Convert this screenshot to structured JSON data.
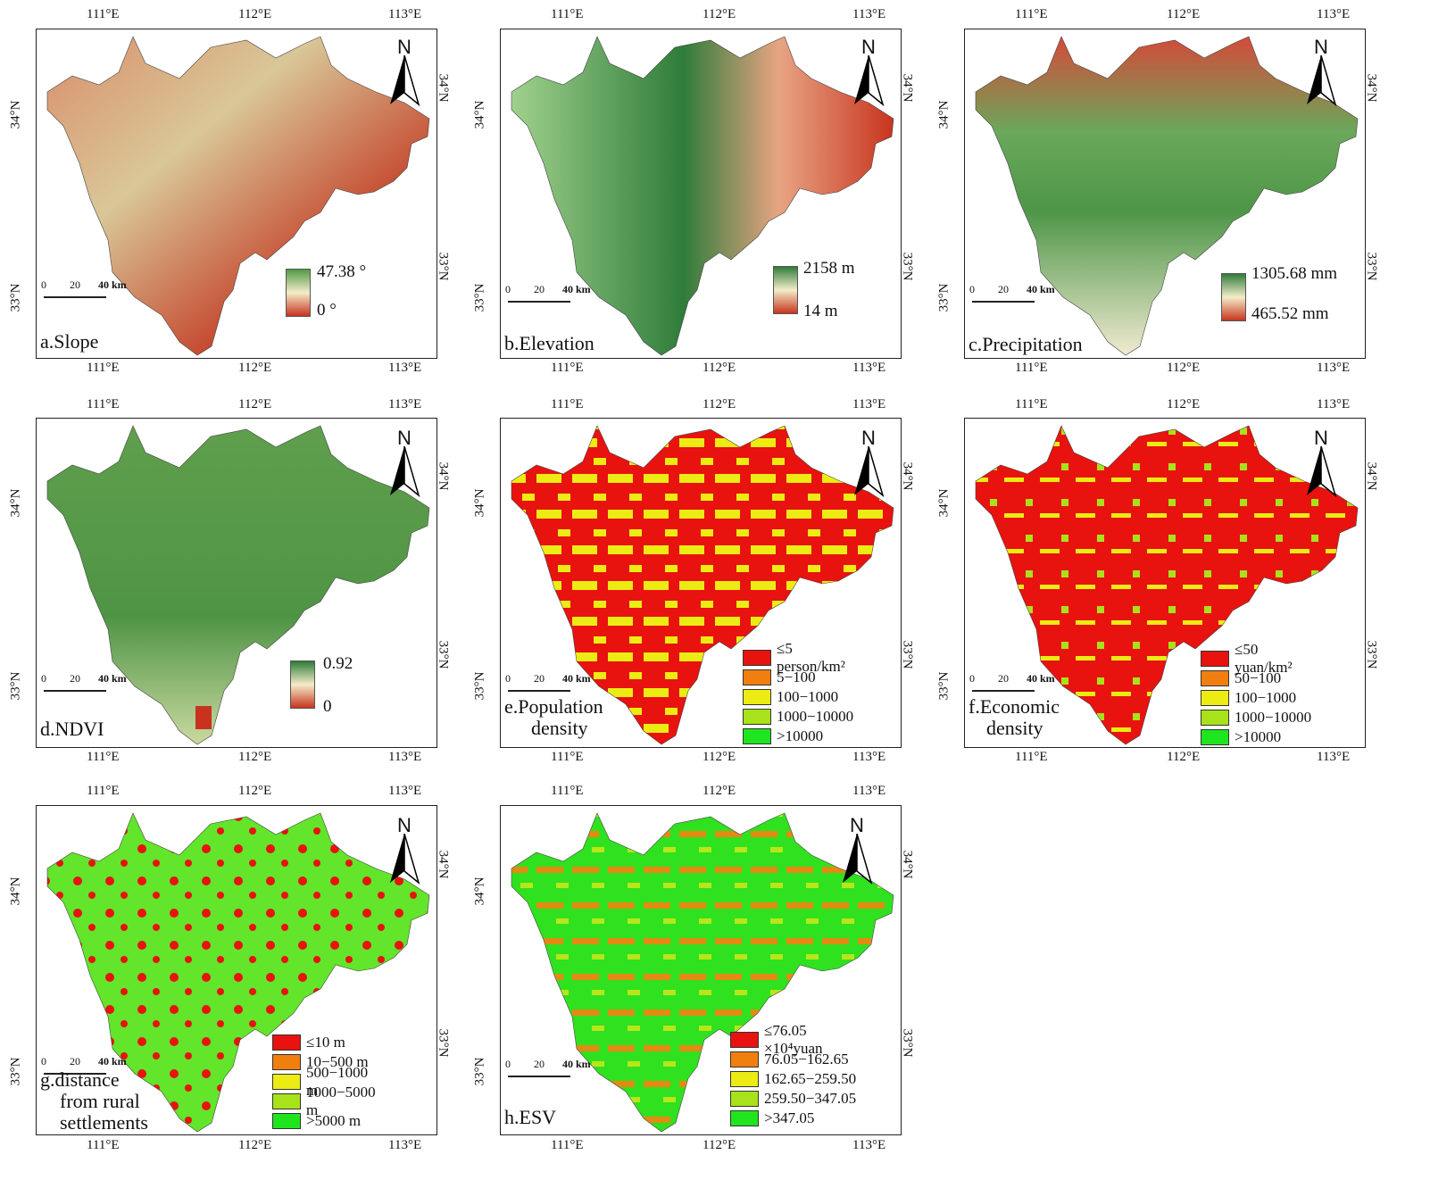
{
  "axes": {
    "lon_top": [
      "111°E",
      "112°E",
      "113°E"
    ],
    "lon_top_b": [
      "111°E",
      "112°E",
      "113°E"
    ],
    "lon_bottom": [
      "111°E",
      "112°E",
      "113°E"
    ],
    "lat": [
      "34°N",
      "33°N"
    ]
  },
  "north": "N",
  "scale": {
    "t0": "0",
    "t20": "20",
    "t40": "40 km"
  },
  "colors": {
    "slope_high": "#3e8f3a",
    "slope_low": "#c8321f",
    "cat_red": "#e8120f",
    "cat_orange": "#f07f10",
    "cat_yellow": "#ecec14",
    "cat_lime": "#a8e21a",
    "cat_green": "#1fe51f"
  },
  "panels": {
    "a": {
      "label": "a.Slope",
      "max": "47.38 °",
      "min": "0 °"
    },
    "b": {
      "label": "b.Elevation",
      "max": "2158 m",
      "min": "14 m"
    },
    "c": {
      "label": "c.Precipitation",
      "max": "1305.68 mm",
      "min": "465.52 mm"
    },
    "d": {
      "label": "d.NDVI",
      "max": "0.92",
      "min": "0"
    },
    "e": {
      "label1": "e.Population",
      "label2": "density",
      "legend": [
        "≤5  person/km²",
        "5−100",
        "100−1000",
        "1000−10000",
        ">10000"
      ]
    },
    "f": {
      "label1": "f.Economic",
      "label2": "density",
      "legend": [
        "≤50 yuan/km²",
        "50−100",
        "100−1000",
        "1000−10000",
        ">10000"
      ]
    },
    "g": {
      "label1": "g.distance",
      "label2": "from rural",
      "label3": "settlements",
      "legend": [
        "≤10 m",
        "10−500 m",
        "500−1000 m",
        "1000−5000 m",
        ">5000 m"
      ]
    },
    "h": {
      "label": "h.ESV",
      "legend": [
        "≤76.05 ×10⁴yuan",
        "76.05−162.65",
        "162.65−259.50",
        "259.50−347.05",
        ">347.05"
      ]
    }
  }
}
